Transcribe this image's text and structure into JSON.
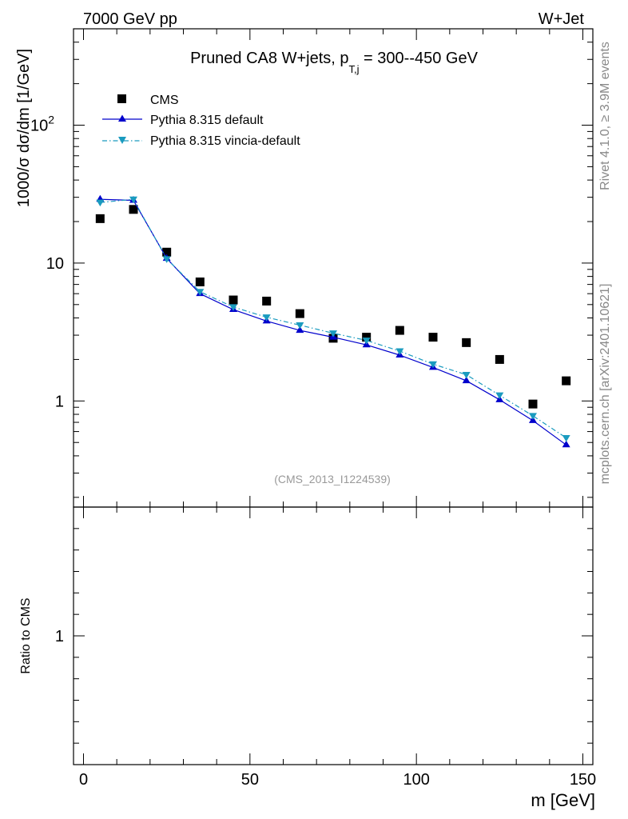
{
  "header": {
    "energy_label": "7000 GeV pp",
    "process_label": "W+Jet"
  },
  "side_labels": {
    "rivet": "Rivet 4.1.0, ≥ 3.9M events",
    "mcplots": "mcplots.cern.ch [arXiv:2401.10621]"
  },
  "chart_data": {
    "type": "line",
    "title_main": "Pruned CA8 W+jets, p",
    "title_sub": "T,j",
    "title_rest": " = 300--450 GeV",
    "analysis_id": "(CMS_2013_I1224539)",
    "ylabel": "1000/σ  dσ/dm [1/GeV]",
    "xlabel": "m [GeV]",
    "ratio_ylabel": "Ratio to CMS",
    "yscale": "log",
    "xlim": [
      -3,
      153
    ],
    "ylim": [
      0.17,
      500
    ],
    "x_ticks": [
      {
        "value": 0,
        "label": "0"
      },
      {
        "value": 50,
        "label": "50"
      },
      {
        "value": 100,
        "label": "100"
      },
      {
        "value": 150,
        "label": "150"
      }
    ],
    "y_ticks": [
      {
        "value": 1,
        "label": "1"
      },
      {
        "value": 10,
        "label": "10"
      },
      {
        "value": 100,
        "label": "10",
        "exponent": "2"
      }
    ],
    "ratio_ylim": [
      0.4,
      1.6
    ],
    "ratio_ticks": [
      {
        "value": 1,
        "label": "1"
      }
    ],
    "x": [
      5,
      15,
      25,
      35,
      45,
      55,
      65,
      75,
      85,
      95,
      105,
      115,
      125,
      135,
      145
    ],
    "series": [
      {
        "name": "CMS",
        "style": "data",
        "color": "#000000",
        "values": [
          21.0,
          24.5,
          12.0,
          7.3,
          5.4,
          5.3,
          4.3,
          2.85,
          2.9,
          3.25,
          2.9,
          2.65,
          2.0,
          0.95,
          1.4
        ]
      },
      {
        "name": "Pythia 8.315 default",
        "style": "solid-up-triangle",
        "color": "#0000cc",
        "values": [
          29.0,
          28.5,
          10.8,
          6.0,
          4.6,
          3.8,
          3.25,
          2.9,
          2.55,
          2.15,
          1.75,
          1.4,
          1.02,
          0.72,
          0.48
        ]
      },
      {
        "name": "Pythia 8.315 vincia-default",
        "style": "dashdot-down-triangle",
        "color": "#1a9bbf",
        "values": [
          27.5,
          29.0,
          10.7,
          6.2,
          4.8,
          4.05,
          3.55,
          3.1,
          2.75,
          2.3,
          1.85,
          1.55,
          1.1,
          0.78,
          0.54
        ]
      }
    ]
  }
}
